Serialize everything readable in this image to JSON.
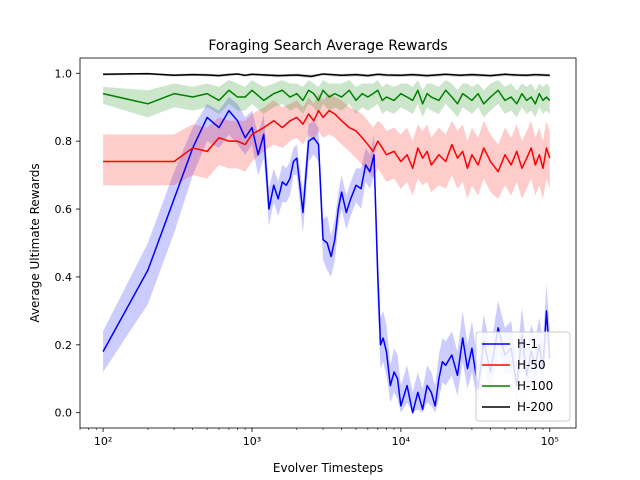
{
  "chart_data": {
    "type": "line",
    "title": "Foraging Search Average Rewards",
    "xlabel": "Evolver Timesteps",
    "ylabel": "Average Ultimate Rewards",
    "x_scale": "log",
    "xlim": [
      70,
      150000
    ],
    "ylim": [
      -0.045,
      1.045
    ],
    "x_ticks": [
      {
        "value": 100,
        "label": "10²"
      },
      {
        "value": 1000,
        "label": "10³"
      },
      {
        "value": 10000,
        "label": "10⁴"
      },
      {
        "value": 100000,
        "label": "10⁵"
      }
    ],
    "y_ticks": [
      {
        "value": 0.0,
        "label": "0.0"
      },
      {
        "value": 0.2,
        "label": "0.2"
      },
      {
        "value": 0.4,
        "label": "0.4"
      },
      {
        "value": 0.6,
        "label": "0.6"
      },
      {
        "value": 0.8,
        "label": "0.8"
      },
      {
        "value": 1.0,
        "label": "1.0"
      }
    ],
    "grid": false,
    "legend_position": "lower-right",
    "series": [
      {
        "name": "H-1",
        "color": "#0000ff",
        "band_color": "#0000ff",
        "x": [
          100,
          200,
          300,
          400,
          500,
          600,
          700,
          800,
          900,
          1000,
          1100,
          1200,
          1300,
          1400,
          1500,
          1600,
          1700,
          1800,
          1900,
          2000,
          2200,
          2400,
          2600,
          2800,
          3000,
          3200,
          3400,
          3600,
          3800,
          4000,
          4300,
          4600,
          5000,
          5400,
          5800,
          6200,
          6600,
          7000,
          7300,
          7600,
          8000,
          8500,
          9000,
          9500,
          10000,
          11000,
          12000,
          13000,
          14000,
          15000,
          16000,
          17000,
          18000,
          19000,
          20000,
          22000,
          24000,
          26000,
          28000,
          30000,
          33000,
          36000,
          40000,
          45000,
          50000,
          55000,
          60000,
          65000,
          70000,
          75000,
          80000,
          85000,
          90000,
          95000,
          100000
        ],
        "y": [
          0.18,
          0.42,
          0.63,
          0.78,
          0.87,
          0.84,
          0.89,
          0.86,
          0.81,
          0.84,
          0.76,
          0.82,
          0.6,
          0.67,
          0.63,
          0.68,
          0.67,
          0.69,
          0.74,
          0.75,
          0.59,
          0.8,
          0.81,
          0.79,
          0.51,
          0.5,
          0.46,
          0.51,
          0.6,
          0.65,
          0.59,
          0.63,
          0.67,
          0.66,
          0.73,
          0.71,
          0.76,
          0.4,
          0.2,
          0.22,
          0.18,
          0.08,
          0.12,
          0.1,
          0.02,
          0.08,
          0.0,
          0.06,
          0.01,
          0.08,
          0.06,
          0.02,
          0.1,
          0.15,
          0.14,
          0.17,
          0.11,
          0.22,
          0.13,
          0.19,
          0.07,
          0.21,
          0.12,
          0.25,
          0.17,
          0.19,
          0.08,
          0.23,
          0.11,
          0.18,
          0.14,
          0.2,
          0.13,
          0.3,
          0.16
        ],
        "lower": [
          0.12,
          0.32,
          0.53,
          0.7,
          0.8,
          0.78,
          0.82,
          0.79,
          0.76,
          0.79,
          0.7,
          0.75,
          0.55,
          0.62,
          0.58,
          0.62,
          0.62,
          0.64,
          0.7,
          0.7,
          0.53,
          0.74,
          0.76,
          0.74,
          0.45,
          0.42,
          0.4,
          0.45,
          0.55,
          0.6,
          0.54,
          0.58,
          0.62,
          0.6,
          0.68,
          0.66,
          0.7,
          0.3,
          0.13,
          0.15,
          0.11,
          0.03,
          0.06,
          0.04,
          0.0,
          0.03,
          0.0,
          0.01,
          0.0,
          0.03,
          0.02,
          0.0,
          0.04,
          0.09,
          0.08,
          0.11,
          0.05,
          0.15,
          0.07,
          0.12,
          0.02,
          0.14,
          0.06,
          0.18,
          0.11,
          0.12,
          0.03,
          0.16,
          0.05,
          0.12,
          0.08,
          0.13,
          0.07,
          0.22,
          0.1
        ],
        "upper": [
          0.24,
          0.5,
          0.71,
          0.84,
          0.91,
          0.89,
          0.93,
          0.91,
          0.87,
          0.89,
          0.82,
          0.88,
          0.66,
          0.72,
          0.68,
          0.73,
          0.72,
          0.74,
          0.78,
          0.79,
          0.65,
          0.85,
          0.86,
          0.84,
          0.57,
          0.58,
          0.52,
          0.57,
          0.65,
          0.7,
          0.64,
          0.68,
          0.72,
          0.72,
          0.78,
          0.76,
          0.82,
          0.48,
          0.28,
          0.3,
          0.26,
          0.14,
          0.19,
          0.17,
          0.08,
          0.14,
          0.06,
          0.12,
          0.07,
          0.14,
          0.12,
          0.08,
          0.17,
          0.22,
          0.21,
          0.24,
          0.18,
          0.3,
          0.2,
          0.27,
          0.14,
          0.29,
          0.19,
          0.33,
          0.25,
          0.27,
          0.15,
          0.31,
          0.19,
          0.26,
          0.22,
          0.28,
          0.21,
          0.38,
          0.24
        ]
      },
      {
        "name": "H-50",
        "color": "#ff0000",
        "band_color": "#ff0000",
        "x": [
          100,
          200,
          300,
          400,
          500,
          600,
          700,
          800,
          900,
          1000,
          1200,
          1400,
          1600,
          1800,
          2000,
          2200,
          2400,
          2600,
          2800,
          3000,
          3300,
          3600,
          4000,
          4500,
          5000,
          5500,
          6000,
          6500,
          7000,
          7500,
          8000,
          9000,
          10000,
          11000,
          12000,
          13000,
          14000,
          15000,
          16000,
          18000,
          20000,
          22000,
          24000,
          26000,
          28000,
          30000,
          33000,
          36000,
          40000,
          45000,
          50000,
          55000,
          60000,
          65000,
          70000,
          75000,
          80000,
          85000,
          90000,
          95000,
          100000
        ],
        "y": [
          0.74,
          0.74,
          0.74,
          0.78,
          0.77,
          0.81,
          0.8,
          0.8,
          0.79,
          0.82,
          0.84,
          0.86,
          0.84,
          0.86,
          0.87,
          0.85,
          0.88,
          0.86,
          0.89,
          0.87,
          0.89,
          0.88,
          0.86,
          0.84,
          0.83,
          0.81,
          0.79,
          0.77,
          0.8,
          0.78,
          0.76,
          0.77,
          0.74,
          0.76,
          0.72,
          0.78,
          0.75,
          0.77,
          0.73,
          0.76,
          0.74,
          0.79,
          0.75,
          0.77,
          0.72,
          0.76,
          0.73,
          0.78,
          0.74,
          0.71,
          0.76,
          0.73,
          0.77,
          0.72,
          0.75,
          0.78,
          0.73,
          0.76,
          0.72,
          0.78,
          0.75
        ],
        "lower": [
          0.67,
          0.67,
          0.67,
          0.7,
          0.69,
          0.73,
          0.72,
          0.72,
          0.71,
          0.74,
          0.77,
          0.79,
          0.78,
          0.8,
          0.81,
          0.79,
          0.82,
          0.8,
          0.83,
          0.81,
          0.82,
          0.81,
          0.79,
          0.77,
          0.75,
          0.73,
          0.71,
          0.69,
          0.72,
          0.7,
          0.68,
          0.69,
          0.66,
          0.68,
          0.64,
          0.69,
          0.67,
          0.68,
          0.65,
          0.67,
          0.66,
          0.7,
          0.66,
          0.68,
          0.63,
          0.67,
          0.64,
          0.69,
          0.65,
          0.63,
          0.67,
          0.64,
          0.68,
          0.63,
          0.66,
          0.69,
          0.64,
          0.67,
          0.63,
          0.69,
          0.66
        ],
        "upper": [
          0.82,
          0.82,
          0.82,
          0.85,
          0.84,
          0.87,
          0.86,
          0.86,
          0.86,
          0.88,
          0.9,
          0.92,
          0.9,
          0.91,
          0.92,
          0.9,
          0.93,
          0.91,
          0.94,
          0.92,
          0.94,
          0.93,
          0.92,
          0.9,
          0.89,
          0.88,
          0.86,
          0.84,
          0.86,
          0.85,
          0.83,
          0.84,
          0.82,
          0.84,
          0.8,
          0.85,
          0.83,
          0.85,
          0.81,
          0.84,
          0.82,
          0.86,
          0.83,
          0.85,
          0.8,
          0.84,
          0.81,
          0.86,
          0.82,
          0.79,
          0.84,
          0.81,
          0.85,
          0.8,
          0.83,
          0.86,
          0.81,
          0.84,
          0.8,
          0.86,
          0.83
        ]
      },
      {
        "name": "H-100",
        "color": "#008000",
        "band_color": "#008000",
        "x": [
          100,
          200,
          300,
          400,
          500,
          600,
          700,
          800,
          900,
          1000,
          1200,
          1400,
          1600,
          1800,
          2000,
          2200,
          2400,
          2600,
          2800,
          3000,
          3300,
          3600,
          4000,
          4500,
          5000,
          5500,
          6000,
          6500,
          7000,
          7500,
          8000,
          9000,
          10000,
          11000,
          12000,
          13000,
          14000,
          15000,
          16000,
          18000,
          20000,
          22000,
          24000,
          26000,
          28000,
          30000,
          33000,
          36000,
          40000,
          45000,
          50000,
          55000,
          60000,
          65000,
          70000,
          75000,
          80000,
          85000,
          90000,
          95000,
          100000
        ],
        "y": [
          0.94,
          0.91,
          0.94,
          0.93,
          0.94,
          0.92,
          0.95,
          0.93,
          0.93,
          0.95,
          0.92,
          0.94,
          0.95,
          0.93,
          0.94,
          0.92,
          0.95,
          0.94,
          0.92,
          0.95,
          0.93,
          0.94,
          0.93,
          0.95,
          0.92,
          0.94,
          0.93,
          0.94,
          0.95,
          0.92,
          0.93,
          0.92,
          0.94,
          0.93,
          0.92,
          0.95,
          0.91,
          0.94,
          0.93,
          0.92,
          0.95,
          0.93,
          0.91,
          0.94,
          0.93,
          0.92,
          0.94,
          0.91,
          0.93,
          0.95,
          0.92,
          0.93,
          0.91,
          0.94,
          0.92,
          0.93,
          0.91,
          0.94,
          0.92,
          0.93,
          0.92
        ],
        "lower": [
          0.91,
          0.87,
          0.9,
          0.89,
          0.9,
          0.88,
          0.91,
          0.89,
          0.89,
          0.91,
          0.88,
          0.9,
          0.91,
          0.89,
          0.9,
          0.88,
          0.91,
          0.9,
          0.88,
          0.91,
          0.89,
          0.9,
          0.89,
          0.91,
          0.88,
          0.9,
          0.89,
          0.9,
          0.91,
          0.88,
          0.89,
          0.88,
          0.9,
          0.89,
          0.88,
          0.91,
          0.87,
          0.9,
          0.89,
          0.88,
          0.91,
          0.89,
          0.87,
          0.9,
          0.89,
          0.88,
          0.9,
          0.87,
          0.89,
          0.91,
          0.88,
          0.89,
          0.87,
          0.9,
          0.88,
          0.89,
          0.87,
          0.9,
          0.88,
          0.89,
          0.88
        ],
        "upper": [
          0.96,
          0.95,
          0.97,
          0.96,
          0.97,
          0.96,
          0.98,
          0.97,
          0.96,
          0.98,
          0.96,
          0.97,
          0.98,
          0.97,
          0.97,
          0.96,
          0.98,
          0.97,
          0.96,
          0.98,
          0.97,
          0.97,
          0.97,
          0.98,
          0.96,
          0.97,
          0.97,
          0.97,
          0.98,
          0.96,
          0.97,
          0.96,
          0.97,
          0.97,
          0.96,
          0.98,
          0.95,
          0.97,
          0.97,
          0.96,
          0.98,
          0.97,
          0.95,
          0.97,
          0.97,
          0.96,
          0.97,
          0.95,
          0.97,
          0.98,
          0.96,
          0.97,
          0.95,
          0.97,
          0.96,
          0.97,
          0.95,
          0.97,
          0.96,
          0.97,
          0.96
        ]
      },
      {
        "name": "H-200",
        "color": "#000000",
        "band_color": "#000000",
        "x": [
          100,
          200,
          300,
          400,
          500,
          600,
          700,
          800,
          900,
          1000,
          1500,
          2000,
          2500,
          3000,
          4000,
          5000,
          6000,
          7000,
          8000,
          10000,
          12000,
          15000,
          20000,
          25000,
          30000,
          40000,
          50000,
          60000,
          70000,
          80000,
          90000,
          100000
        ],
        "y": [
          0.997,
          0.999,
          0.994,
          0.996,
          0.995,
          0.993,
          0.996,
          0.998,
          0.994,
          0.997,
          0.993,
          0.995,
          0.991,
          0.998,
          0.994,
          0.996,
          0.993,
          0.997,
          0.995,
          0.994,
          0.996,
          0.993,
          0.997,
          0.994,
          0.996,
          0.993,
          0.997,
          0.995,
          0.994,
          0.996,
          0.995,
          0.994
        ],
        "lower": [
          0.993,
          0.995,
          0.99,
          0.992,
          0.991,
          0.989,
          0.992,
          0.994,
          0.99,
          0.993,
          0.988,
          0.99,
          0.986,
          0.993,
          0.989,
          0.991,
          0.988,
          0.992,
          0.99,
          0.989,
          0.991,
          0.988,
          0.992,
          0.989,
          0.991,
          0.988,
          0.992,
          0.99,
          0.989,
          0.991,
          0.99,
          0.989
        ],
        "upper": [
          1.0,
          1.0,
          0.998,
          1.0,
          0.999,
          0.997,
          1.0,
          1.0,
          0.998,
          1.0,
          0.997,
          0.999,
          0.996,
          1.0,
          0.998,
          1.0,
          0.997,
          1.0,
          0.999,
          0.998,
          1.0,
          0.997,
          1.0,
          0.998,
          1.0,
          0.997,
          1.0,
          0.999,
          0.998,
          1.0,
          0.999,
          0.998
        ]
      }
    ]
  }
}
